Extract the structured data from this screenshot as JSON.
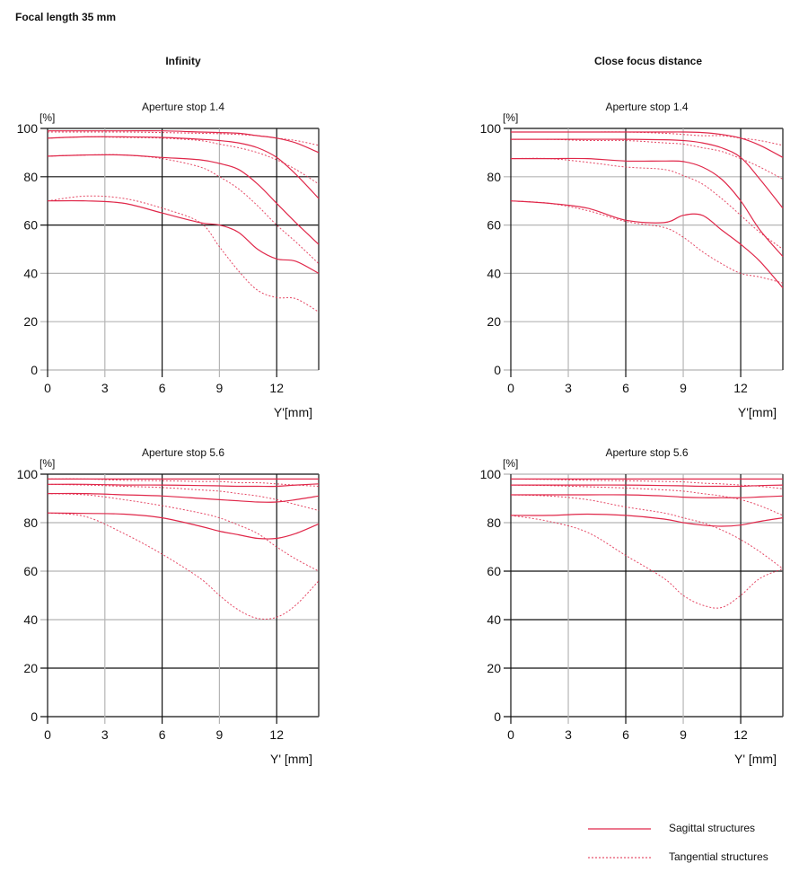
{
  "page_title": "Focal length 35 mm",
  "column_titles": [
    "Infinity",
    "Close focus distance"
  ],
  "colors": {
    "curve": "#e0284a",
    "grid_dark": "#111111",
    "grid_light": "#b5b5b5"
  },
  "legend": {
    "sagittal": "Sagittal structures",
    "tangential": "Tangential structures"
  },
  "chart_data": [
    {
      "type": "line",
      "title": "Aperture stop 1.4",
      "group": "Infinity",
      "ylabel": "[%]",
      "xlabel": "Y'[mm]",
      "xlim": [
        0,
        14.2
      ],
      "ylim": [
        0,
        100
      ],
      "xticks": [
        0,
        3,
        6,
        9,
        12
      ],
      "yticks": [
        0,
        20,
        40,
        60,
        80,
        100
      ],
      "dark_x": [
        0,
        6,
        12
      ],
      "dark_y": [
        60,
        80,
        100
      ],
      "x": [
        0,
        2,
        4,
        6,
        8,
        9,
        10,
        11,
        12,
        13,
        14.2
      ],
      "series": [
        {
          "name": "Sagittal 1",
          "style": "solid",
          "values": [
            99,
            99,
            99,
            99,
            98.5,
            98.3,
            98,
            97,
            96,
            94,
            90
          ]
        },
        {
          "name": "Tangential 1",
          "style": "dashed",
          "values": [
            98.5,
            98.5,
            98.5,
            98.3,
            98,
            97.8,
            97.5,
            97,
            96,
            95,
            93
          ]
        },
        {
          "name": "Sagittal 2",
          "style": "solid",
          "values": [
            96,
            96.5,
            96.5,
            96.3,
            95.5,
            95,
            94,
            92,
            88,
            81,
            71
          ]
        },
        {
          "name": "Tangential 2",
          "style": "dashed",
          "values": [
            96,
            96.5,
            96.3,
            96,
            95,
            93.5,
            92,
            90,
            87,
            83,
            77
          ]
        },
        {
          "name": "Sagittal 3",
          "style": "solid",
          "values": [
            88.5,
            89,
            89,
            88,
            87,
            85.5,
            83,
            77,
            69,
            61,
            52
          ]
        },
        {
          "name": "Tangential 3",
          "style": "dashed",
          "values": [
            88.5,
            89,
            89,
            87.5,
            84,
            80,
            75,
            68,
            60,
            53,
            44
          ]
        },
        {
          "name": "Sagittal 4",
          "style": "solid",
          "values": [
            70,
            70,
            69,
            65,
            61,
            60,
            57,
            50,
            46,
            45,
            40
          ]
        },
        {
          "name": "Tangential 4",
          "style": "dashed",
          "values": [
            70,
            72,
            71,
            67,
            61,
            51,
            41,
            33,
            30,
            29.5,
            24
          ]
        }
      ]
    },
    {
      "type": "line",
      "title": "Aperture stop 1.4",
      "group": "Close focus distance",
      "ylabel": "[%]",
      "xlabel": "Y'[mm]",
      "xlim": [
        0,
        14.2
      ],
      "ylim": [
        0,
        100
      ],
      "xticks": [
        0,
        3,
        6,
        9,
        12
      ],
      "yticks": [
        0,
        20,
        40,
        60,
        80,
        100
      ],
      "dark_x": [
        0,
        6,
        12
      ],
      "dark_y": [
        100
      ],
      "x": [
        0,
        2,
        4,
        6,
        8,
        9,
        10,
        11,
        12,
        13,
        14.2
      ],
      "series": [
        {
          "name": "Sagittal 1",
          "style": "solid",
          "values": [
            98.5,
            98.5,
            98.5,
            98.5,
            98.5,
            98.5,
            98.3,
            97.5,
            96,
            93,
            88
          ]
        },
        {
          "name": "Tangential 1",
          "style": "dashed",
          "values": [
            98.5,
            98.5,
            98.5,
            98.5,
            98,
            97.5,
            97,
            97,
            96,
            95,
            93
          ]
        },
        {
          "name": "Sagittal 2",
          "style": "solid",
          "values": [
            95.5,
            95.5,
            95.5,
            95.5,
            95.3,
            95,
            94,
            92,
            88,
            79,
            67
          ]
        },
        {
          "name": "Tangential 2",
          "style": "dashed",
          "values": [
            95.5,
            95.5,
            95,
            95,
            94,
            93.5,
            92,
            90.5,
            87.5,
            84,
            79
          ]
        },
        {
          "name": "Sagittal 3",
          "style": "solid",
          "values": [
            87.5,
            87.5,
            87.5,
            86.5,
            86.5,
            86.3,
            84,
            79,
            70,
            58,
            47
          ]
        },
        {
          "name": "Tangential 3",
          "style": "dashed",
          "values": [
            87.5,
            87.5,
            86,
            84,
            83,
            80.5,
            77,
            71,
            64,
            57,
            50
          ]
        },
        {
          "name": "Sagittal 4",
          "style": "solid",
          "values": [
            70,
            69,
            67,
            62,
            61,
            64,
            64,
            58,
            52,
            45,
            34
          ]
        },
        {
          "name": "Tangential 4",
          "style": "dashed",
          "values": [
            70,
            69,
            66,
            61.5,
            59,
            55,
            49,
            44,
            40,
            38.5,
            36
          ]
        }
      ]
    },
    {
      "type": "line",
      "title": "Aperture stop 5.6",
      "group": "Infinity",
      "ylabel": "[%]",
      "xlabel": "Y' [mm]",
      "xlim": [
        0,
        14.2
      ],
      "ylim": [
        0,
        100
      ],
      "xticks": [
        0,
        3,
        6,
        9,
        12
      ],
      "yticks": [
        0,
        20,
        40,
        60,
        80,
        100
      ],
      "dark_x": [
        0,
        6,
        12
      ],
      "dark_y": [
        0,
        20,
        100
      ],
      "x": [
        0,
        2,
        4,
        6,
        8,
        9,
        10,
        11,
        12,
        13,
        14.2
      ],
      "series": [
        {
          "name": "Sagittal 1",
          "style": "solid",
          "values": [
            98,
            98,
            98,
            98,
            98,
            98,
            98,
            98,
            98,
            98,
            98
          ]
        },
        {
          "name": "Tangential 1",
          "style": "dashed",
          "values": [
            98,
            98,
            97.5,
            97.3,
            97,
            97,
            96.5,
            96.5,
            96,
            95.5,
            95
          ]
        },
        {
          "name": "Sagittal 2",
          "style": "solid",
          "values": [
            95.8,
            95.8,
            95.5,
            95.5,
            95.3,
            95.2,
            95,
            95,
            95,
            95.5,
            96
          ]
        },
        {
          "name": "Tangential 2",
          "style": "dashed",
          "values": [
            95.8,
            95.5,
            95,
            94.5,
            93.5,
            93,
            92,
            91,
            89.5,
            87.5,
            85
          ]
        },
        {
          "name": "Sagittal 3",
          "style": "solid",
          "values": [
            92,
            92,
            91.5,
            91,
            90,
            89.5,
            89,
            88.5,
            88.5,
            89.5,
            91
          ]
        },
        {
          "name": "Tangential 3",
          "style": "dashed",
          "values": [
            92,
            91.5,
            89.5,
            87,
            84,
            82,
            79,
            75.5,
            70,
            65,
            60
          ]
        },
        {
          "name": "Sagittal 4",
          "style": "solid",
          "values": [
            84,
            83.8,
            83.5,
            82,
            78.5,
            76.5,
            75,
            73.5,
            73.5,
            75.5,
            79.5
          ]
        },
        {
          "name": "Tangential 4",
          "style": "dashed",
          "values": [
            84,
            82.5,
            75.5,
            67,
            57,
            50,
            44,
            40.5,
            41,
            46,
            56
          ]
        }
      ]
    },
    {
      "type": "line",
      "title": "Aperture stop 5.6",
      "group": "Close focus distance",
      "ylabel": "[%]",
      "xlabel": "Y' [mm]",
      "xlim": [
        0,
        14.2
      ],
      "ylim": [
        0,
        100
      ],
      "xticks": [
        0,
        3,
        6,
        9,
        12
      ],
      "yticks": [
        0,
        20,
        40,
        60,
        80,
        100
      ],
      "dark_x": [
        0,
        6,
        12
      ],
      "dark_y": [
        0,
        20,
        40,
        60
      ],
      "x": [
        0,
        2,
        4,
        6,
        8,
        9,
        10,
        11,
        12,
        13,
        14.2
      ],
      "series": [
        {
          "name": "Sagittal 1",
          "style": "solid",
          "values": [
            98,
            98,
            98,
            98,
            98,
            98,
            98,
            98,
            98,
            98,
            98
          ]
        },
        {
          "name": "Tangential 1",
          "style": "dashed",
          "values": [
            98,
            97.8,
            97.5,
            97.3,
            97,
            96.8,
            96.3,
            96,
            95.5,
            95,
            94
          ]
        },
        {
          "name": "Sagittal 2",
          "style": "solid",
          "values": [
            95.5,
            95.5,
            95.5,
            95.5,
            95.3,
            95.2,
            95,
            95,
            95,
            95.3,
            95.5
          ]
        },
        {
          "name": "Tangential 2",
          "style": "dashed",
          "values": [
            95.5,
            95.3,
            94.8,
            94.3,
            93.5,
            93,
            92,
            91,
            89.5,
            87,
            83
          ]
        },
        {
          "name": "Sagittal 3",
          "style": "solid",
          "values": [
            91.5,
            91.5,
            91.5,
            91.5,
            91,
            90.5,
            90.3,
            90.3,
            90.3,
            90.6,
            91
          ]
        },
        {
          "name": "Tangential 3",
          "style": "dashed",
          "values": [
            91.5,
            91,
            89.5,
            86.5,
            84,
            82,
            80,
            77,
            73,
            68,
            61
          ]
        },
        {
          "name": "Sagittal 4",
          "style": "solid",
          "values": [
            83,
            83,
            83.5,
            83,
            81.5,
            80,
            79,
            78.5,
            79,
            80.5,
            82
          ]
        },
        {
          "name": "Tangential 4",
          "style": "dashed",
          "values": [
            83,
            80.5,
            76,
            66.5,
            57,
            50,
            46,
            45,
            50,
            57,
            61
          ]
        }
      ]
    }
  ]
}
